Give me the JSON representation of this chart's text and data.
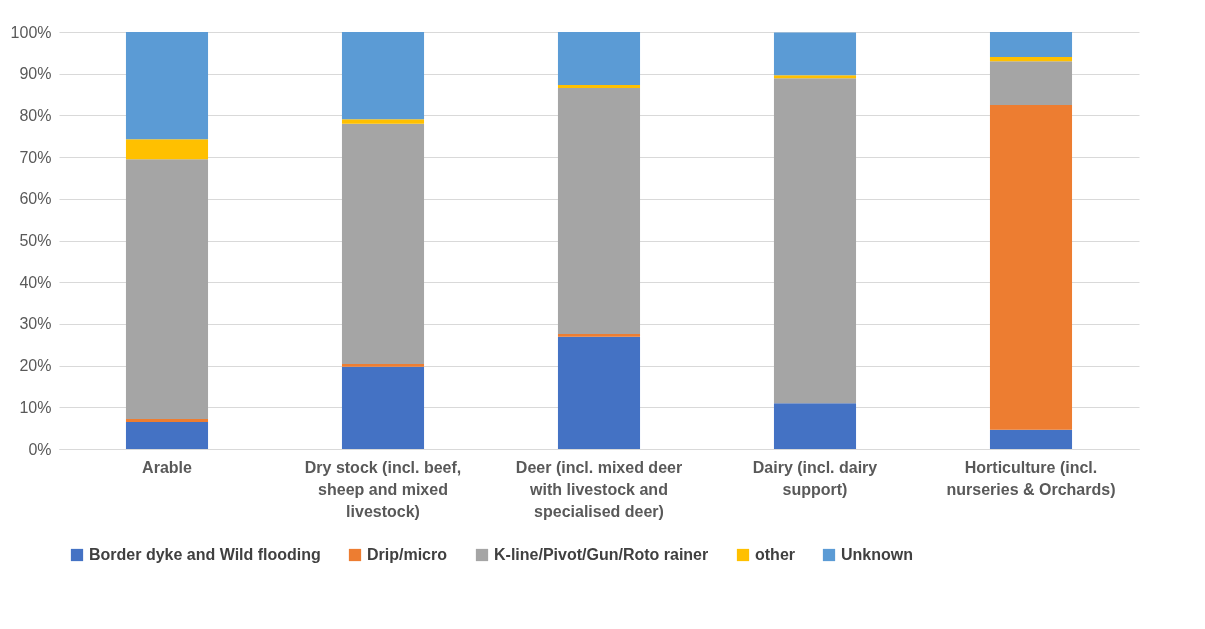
{
  "chart_data": {
    "type": "bar",
    "stacked": true,
    "grid": "y",
    "legend": "bottom",
    "categories": [
      "Arable",
      "Dry stock (incl. beef, sheep and mixed livestock)",
      "Deer (incl. mixed deer with livestock and specialised deer)",
      "Dairy (incl. dairy support)",
      "Horticulture (incl. nurseries & Orchards)"
    ],
    "ylim": [
      0,
      100
    ],
    "yticks": [
      {
        "value": 0,
        "label": "0%"
      },
      {
        "value": 10,
        "label": "10%"
      },
      {
        "value": 20,
        "label": "20%"
      },
      {
        "value": 30,
        "label": "30%"
      },
      {
        "value": 40,
        "label": "40%"
      },
      {
        "value": 50,
        "label": "50%"
      },
      {
        "value": 60,
        "label": "60%"
      },
      {
        "value": 70,
        "label": "70%"
      },
      {
        "value": 80,
        "label": "80%"
      },
      {
        "value": 90,
        "label": "90%"
      },
      {
        "value": 100,
        "label": "100%"
      }
    ],
    "series": [
      {
        "name": "Border dyke and Wild flooding",
        "color": "#4472c4",
        "values": [
          6.5,
          19.7,
          26.9,
          11.0,
          4.6
        ]
      },
      {
        "name": "Drip/micro",
        "color": "#ed7d31",
        "values": [
          0.7,
          0.7,
          0.7,
          null,
          77.9
        ]
      },
      {
        "name": "K-line/Pivot/Gun/Roto rainer",
        "color": "#a5a5a5",
        "values": [
          62.3,
          57.6,
          59.0,
          77.9,
          10.5
        ]
      },
      {
        "name": "other",
        "color": "#ffc000",
        "values": [
          4.8,
          1.1,
          0.7,
          0.7,
          1.0
        ]
      },
      {
        "name": "Unknown",
        "color": "#5b9bd5",
        "values": [
          25.7,
          20.9,
          12.7,
          10.3,
          6.0
        ]
      }
    ]
  }
}
